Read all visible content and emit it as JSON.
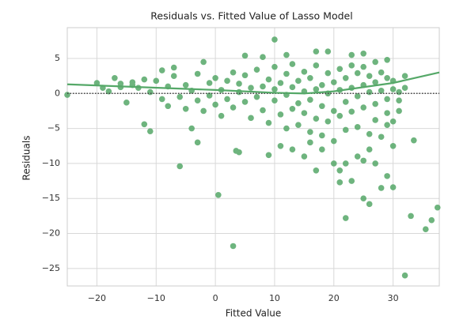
{
  "chart_data": {
    "type": "scatter",
    "title": "Residuals vs. Fitted Value of Lasso Model",
    "x_label": "Fitted Value",
    "y_label": "Residuals",
    "xlim": [
      -25,
      37.8
    ],
    "ylim": [
      -27.5,
      9.4
    ],
    "xticks": [
      {
        "value": -20,
        "label": "−20"
      },
      {
        "value": -10,
        "label": "−10"
      },
      0,
      10,
      20,
      30
    ],
    "yticks": [
      5,
      0,
      {
        "value": -5,
        "label": "−5"
      },
      {
        "value": -10,
        "label": "−10"
      },
      {
        "value": -15,
        "label": "−15"
      },
      {
        "value": -20,
        "label": "−20"
      },
      {
        "value": -25,
        "label": "−25"
      }
    ],
    "grid": true,
    "reference_line": 0,
    "points": {
      "color": "#55a868",
      "x": [
        -25,
        -18,
        -17,
        -15,
        -12,
        -11,
        -6,
        -4,
        -3,
        0.5,
        3,
        3.5,
        4,
        9,
        10,
        17,
        19,
        22,
        23,
        21,
        25,
        26,
        28,
        29,
        30,
        32,
        33,
        35.5,
        36.5,
        37.5,
        33.5,
        32,
        30,
        29,
        26,
        24,
        20,
        21,
        17,
        15,
        13,
        18,
        23,
        25,
        27,
        29,
        5,
        8,
        12,
        -2,
        -7,
        -9,
        -14,
        -16,
        27,
        22,
        25,
        16,
        11,
        -13,
        -20,
        -19,
        -16,
        -14,
        -12,
        -11,
        -10,
        -9,
        -8,
        -8,
        -7,
        -6,
        -5,
        -5,
        -4,
        -3,
        -3,
        -2,
        -1,
        -1,
        0,
        0,
        1,
        1,
        2,
        2,
        3,
        3,
        4,
        4,
        5,
        5,
        6,
        6,
        7,
        7,
        8,
        8,
        9,
        9,
        10,
        10,
        10,
        11,
        11,
        12,
        12,
        12,
        13,
        13,
        13,
        14,
        14,
        14,
        15,
        15,
        15,
        16,
        16,
        16,
        17,
        17,
        17,
        18,
        18,
        18,
        19,
        19,
        19,
        20,
        20,
        20,
        21,
        21,
        21,
        22,
        22,
        22,
        23,
        23,
        23,
        24,
        24,
        24,
        25,
        25,
        25,
        26,
        26,
        26,
        27,
        27,
        27,
        28,
        28,
        28,
        29,
        29,
        29,
        30,
        30,
        30,
        31,
        31,
        31,
        32
      ],
      "values": [
        -0.2,
        0.3,
        2.2,
        -1.3,
        -4.4,
        -5.4,
        -10.4,
        -5,
        -7,
        -14.5,
        -21.8,
        -8.2,
        -8.4,
        -8.8,
        7.7,
        6,
        6,
        -17.8,
        -12.5,
        -12.7,
        -15,
        -15.8,
        -13.5,
        -11.8,
        -13.4,
        -26,
        -17.5,
        -19.4,
        -18.1,
        -16.3,
        -6.7,
        2.5,
        -7.5,
        -4.5,
        -8,
        -9,
        -10,
        -11,
        -11,
        -9,
        -8,
        -8,
        5.5,
        5.7,
        4.5,
        4.8,
        5.4,
        5.2,
        5.5,
        4.5,
        3.7,
        3.3,
        1.6,
        1.4,
        -10,
        -10,
        -9.6,
        -7,
        -7.5,
        0.8,
        1.5,
        0.8,
        0.9,
        1.2,
        2.0,
        0.2,
        1.8,
        -0.8,
        -1.8,
        1.0,
        2.5,
        -0.5,
        1.2,
        -2.2,
        0.4,
        -1.0,
        2.8,
        -2.5,
        1.5,
        -0.3,
        -1.6,
        2.2,
        0.5,
        -3.2,
        1.8,
        -0.8,
        3.0,
        -2.0,
        0.2,
        1.4,
        -1.2,
        2.6,
        -3.5,
        0.8,
        -0.5,
        3.4,
        -2.4,
        1.0,
        -4.2,
        2.0,
        -1.0,
        0.6,
        3.8,
        -3.0,
        1.5,
        -0.2,
        -5.0,
        2.8,
        0.9,
        -2.2,
        4.2,
        -1.4,
        1.8,
        -4.5,
        0.3,
        3.1,
        -2.8,
        -0.9,
        2.2,
        -5.5,
        0.6,
        -3.6,
        4.0,
        -1.8,
        1.2,
        -6.0,
        0.0,
        2.9,
        -4.0,
        -2.5,
        1.6,
        -6.8,
        0.5,
        3.5,
        -3.2,
        -1.2,
        2.2,
        -5.2,
        0.8,
        4.0,
        -2.6,
        -0.4,
        2.9,
        -4.8,
        1.2,
        -2.0,
        3.8,
        0.2,
        -5.8,
        2.5,
        -1.5,
        1.6,
        -3.8,
        0.4,
        3.0,
        -6.2,
        -0.8,
        2.2,
        -2.8,
        0.6,
        -4.0,
        1.8,
        -1.0,
        0.2,
        -2.5,
        0.8
      ]
    },
    "fit_line": {
      "color": "#55a868",
      "x": [
        -25,
        0,
        10,
        15,
        20,
        30,
        37.8
      ],
      "values": [
        1.3,
        0.5,
        0.1,
        0.0,
        0.3,
        1.5,
        3.0
      ]
    }
  }
}
